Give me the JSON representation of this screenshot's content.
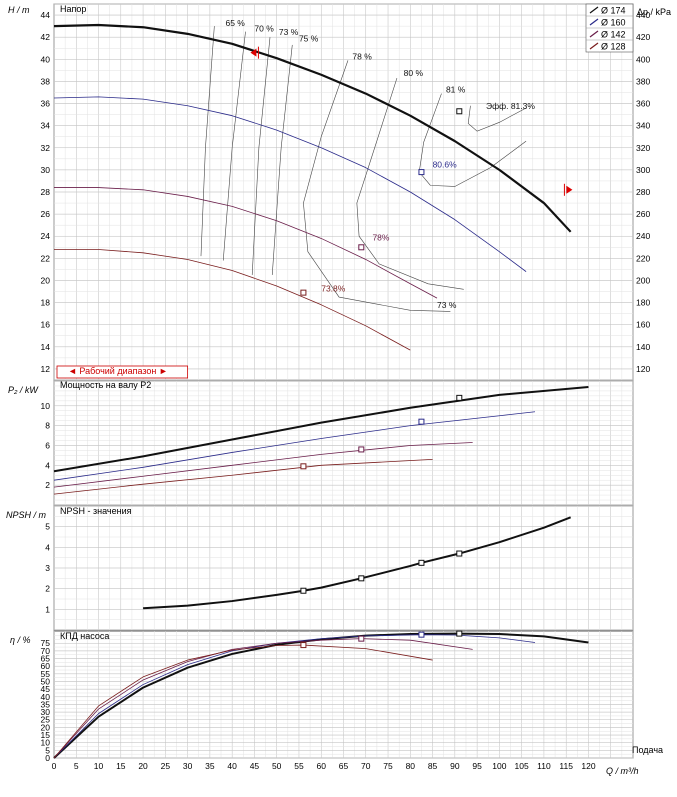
{
  "legend": [
    {
      "label": "Ø 174",
      "color": "#111111"
    },
    {
      "label": "Ø 160",
      "color": "#2b2b8a"
    },
    {
      "label": "Ø 142",
      "color": "#6a1e4a"
    },
    {
      "label": "Ø 128",
      "color": "#7a1e1e"
    }
  ],
  "x_axis": {
    "ticks": [
      0,
      5,
      10,
      15,
      20,
      25,
      30,
      35,
      40,
      45,
      50,
      55,
      60,
      65,
      70,
      75,
      80,
      85,
      90,
      95,
      100,
      105,
      110,
      115,
      120
    ],
    "min": 0,
    "max": 130,
    "label": "Q / m³/h",
    "sublabel": "Подача"
  },
  "panels": {
    "head": {
      "title": "Напор",
      "y_label": "H / m",
      "y_right_label": "Δp / kPa",
      "y_ticks": [
        12,
        14,
        16,
        18,
        20,
        22,
        24,
        26,
        28,
        30,
        32,
        34,
        36,
        38,
        40,
        42,
        44
      ],
      "y_right_ticks": [
        120,
        140,
        160,
        180,
        200,
        220,
        240,
        260,
        280,
        300,
        320,
        340,
        360,
        380,
        400,
        420,
        440
      ],
      "ylim": [
        11,
        45
      ],
      "range_label": "◄ Рабочий диапазон ►"
    },
    "power": {
      "title": "Мощность на валу P2",
      "y_label": "P₂ / kW",
      "y_ticks": [
        2,
        4,
        6,
        8,
        10
      ],
      "ylim": [
        0,
        12.5
      ]
    },
    "npsh": {
      "title": "NPSH - значения",
      "y_label": "NPSH / m",
      "y_ticks": [
        1,
        2,
        3,
        4,
        5
      ],
      "ylim": [
        0,
        6
      ]
    },
    "eff": {
      "title": "КПД насоса",
      "y_label": "η / %",
      "y_ticks": [
        0,
        5,
        10,
        15,
        20,
        25,
        30,
        35,
        40,
        45,
        50,
        55,
        60,
        65,
        70,
        75
      ],
      "ylim": [
        0,
        83
      ]
    }
  },
  "efficiency_labels": [
    {
      "text": "65 %",
      "x": 38.5,
      "y": 43.0
    },
    {
      "text": "70 %",
      "x": 45,
      "y": 42.5
    },
    {
      "text": "73 %",
      "x": 50.5,
      "y": 42.2
    },
    {
      "text": "75 %",
      "x": 55,
      "y": 41.6
    },
    {
      "text": "78 %",
      "x": 67,
      "y": 40.0
    },
    {
      "text": "80 %",
      "x": 78.5,
      "y": 38.5
    },
    {
      "text": "81 %",
      "x": 88,
      "y": 37.0
    },
    {
      "text": "Эфф.  81.3%",
      "x": 97,
      "y": 35.5
    },
    {
      "text": "80.6%",
      "x": 85,
      "y": 30.2
    },
    {
      "text": "78%",
      "x": 71.5,
      "y": 23.6
    },
    {
      "text": "73.8%",
      "x": 60,
      "y": 19.0
    },
    {
      "text": "73 %",
      "x": 86,
      "y": 17.5
    }
  ],
  "chart_data": [
    {
      "type": "line",
      "title": "Напор",
      "ylabel": "H / m",
      "y2label": "Δp / kPa",
      "xlabel": "Q / m³/h",
      "xlim": [
        0,
        130
      ],
      "ylim": [
        11,
        45
      ],
      "grid": true,
      "legend": "top-right",
      "series": [
        {
          "name": "Ø 174",
          "color": "#111111",
          "width": 2.2,
          "x": [
            0,
            10,
            20,
            30,
            40,
            50,
            60,
            70,
            80,
            90,
            100,
            110,
            116
          ],
          "y": [
            43.0,
            43.1,
            42.9,
            42.3,
            41.4,
            40.1,
            38.6,
            36.9,
            34.9,
            32.6,
            30.0,
            27.0,
            24.4
          ]
        },
        {
          "name": "Ø 160",
          "color": "#2b2b8a",
          "width": 0.8,
          "x": [
            0,
            10,
            20,
            30,
            40,
            50,
            60,
            70,
            80,
            90,
            100,
            106
          ],
          "y": [
            36.5,
            36.6,
            36.4,
            35.8,
            34.9,
            33.6,
            32.0,
            30.2,
            28.0,
            25.5,
            22.6,
            20.8
          ]
        },
        {
          "name": "Ø 142",
          "color": "#6a1e4a",
          "width": 0.8,
          "x": [
            0,
            10,
            20,
            30,
            40,
            50,
            60,
            70,
            80,
            86
          ],
          "y": [
            28.4,
            28.4,
            28.2,
            27.6,
            26.7,
            25.4,
            23.8,
            21.9,
            19.7,
            18.4
          ]
        },
        {
          "name": "Ø 128",
          "color": "#7a1e1e",
          "width": 0.8,
          "x": [
            0,
            10,
            20,
            30,
            40,
            50,
            60,
            70,
            80
          ],
          "y": [
            22.8,
            22.8,
            22.5,
            21.9,
            20.9,
            19.5,
            17.8,
            15.9,
            13.7
          ]
        }
      ],
      "iso_lines": [
        {
          "x": [
            36,
            34,
            33
          ],
          "y": [
            43,
            32,
            22.2
          ]
        },
        {
          "x": [
            43,
            40,
            38
          ],
          "y": [
            42.5,
            32,
            21.8
          ]
        },
        {
          "x": [
            48.5,
            46,
            44.5
          ],
          "y": [
            42.0,
            32,
            20.5
          ]
        },
        {
          "x": [
            53.5,
            51,
            49
          ],
          "y": [
            41.3,
            32,
            20.5
          ]
        },
        {
          "x": [
            66,
            60,
            56,
            57,
            64,
            80,
            89
          ],
          "y": [
            39.9,
            33,
            27,
            22.6,
            18.5,
            17.3,
            17.2
          ]
        },
        {
          "x": [
            77,
            72,
            68,
            68.5,
            73,
            84,
            92
          ],
          "y": [
            38.3,
            32,
            27,
            24,
            21.5,
            19.7,
            19.2
          ]
        },
        {
          "x": [
            87,
            83,
            82,
            84.5,
            90,
            98,
            106
          ],
          "y": [
            36.9,
            32.5,
            29.8,
            28.6,
            28.5,
            30.2,
            32.6
          ]
        },
        {
          "x": [
            93.5,
            93,
            95,
            100,
            106
          ],
          "y": [
            35.8,
            34.2,
            33.5,
            34.3,
            35.6
          ]
        }
      ],
      "duty_points": [
        {
          "x": 91,
          "y": 35.3
        },
        {
          "x": 82.5,
          "y": 29.8
        },
        {
          "x": 69,
          "y": 23.0
        },
        {
          "x": 56,
          "y": 18.9
        }
      ],
      "operating_range": [
        0,
        30
      ]
    },
    {
      "type": "line",
      "title": "Мощность на валу P2",
      "ylabel": "P₂ / kW",
      "xlim": [
        0,
        130
      ],
      "ylim": [
        0,
        12.5
      ],
      "grid": true,
      "series": [
        {
          "name": "Ø 174",
          "x": [
            0,
            20,
            40,
            60,
            80,
            100,
            120
          ],
          "y": [
            3.4,
            4.9,
            6.6,
            8.3,
            9.8,
            11.1,
            11.9
          ]
        },
        {
          "name": "Ø 160",
          "x": [
            0,
            20,
            40,
            60,
            80,
            100,
            108
          ],
          "y": [
            2.5,
            3.8,
            5.3,
            6.7,
            8.0,
            9.0,
            9.4
          ]
        },
        {
          "name": "Ø 142",
          "x": [
            0,
            20,
            40,
            60,
            80,
            94
          ],
          "y": [
            1.8,
            2.9,
            4.0,
            5.1,
            6.0,
            6.3
          ]
        },
        {
          "name": "Ø 128",
          "x": [
            0,
            20,
            40,
            60,
            85
          ],
          "y": [
            1.1,
            2.1,
            3.0,
            4.0,
            4.6
          ]
        }
      ],
      "duty_points": [
        {
          "x": 91,
          "y": 10.8
        },
        {
          "x": 82.5,
          "y": 8.4
        },
        {
          "x": 69,
          "y": 5.6
        },
        {
          "x": 56,
          "y": 3.9
        }
      ]
    },
    {
      "type": "line",
      "title": "NPSH - значения",
      "ylabel": "NPSH / m",
      "xlim": [
        0,
        130
      ],
      "ylim": [
        0,
        6
      ],
      "grid": true,
      "series": [
        {
          "name": "NPSH",
          "x": [
            20,
            30,
            40,
            50,
            56,
            60,
            69,
            80,
            82.5,
            91,
            100,
            110,
            116
          ],
          "y": [
            1.05,
            1.18,
            1.4,
            1.7,
            1.9,
            2.05,
            2.5,
            3.1,
            3.25,
            3.7,
            4.25,
            4.95,
            5.45
          ]
        }
      ],
      "duty_points": [
        {
          "x": 91,
          "y": 3.7
        },
        {
          "x": 82.5,
          "y": 3.25
        },
        {
          "x": 69,
          "y": 2.5
        },
        {
          "x": 56,
          "y": 1.9
        }
      ]
    },
    {
      "type": "line",
      "title": "КПД насоса",
      "ylabel": "η / %",
      "xlim": [
        0,
        130
      ],
      "ylim": [
        0,
        83
      ],
      "grid": true,
      "series": [
        {
          "name": "Ø 174",
          "x": [
            0,
            10,
            20,
            30,
            40,
            50,
            60,
            70,
            80,
            90,
            100,
            110,
            120
          ],
          "y": [
            0,
            27,
            46,
            59,
            68,
            74,
            77.5,
            80,
            81,
            81.3,
            81,
            79.5,
            75.5
          ]
        },
        {
          "name": "Ø 160",
          "x": [
            0,
            10,
            20,
            30,
            40,
            50,
            60,
            70,
            82.5,
            90,
            100,
            108
          ],
          "y": [
            0,
            29,
            48,
            61,
            70,
            75,
            78,
            79.8,
            80.6,
            80.4,
            78.5,
            75.5
          ]
        },
        {
          "name": "Ø 142",
          "x": [
            0,
            10,
            20,
            30,
            40,
            50,
            60,
            69,
            80,
            94
          ],
          "y": [
            0,
            32,
            51,
            63,
            71,
            75,
            77,
            78,
            77,
            71
          ]
        },
        {
          "name": "Ø 128",
          "x": [
            0,
            10,
            20,
            30,
            40,
            50,
            56,
            70,
            85
          ],
          "y": [
            0,
            34,
            53,
            64,
            70.5,
            73.5,
            73.8,
            71.5,
            64
          ]
        }
      ],
      "duty_points": [
        {
          "x": 91,
          "y": 81.3
        },
        {
          "x": 82.5,
          "y": 80.6
        },
        {
          "x": 69,
          "y": 78
        },
        {
          "x": 56,
          "y": 73.8
        }
      ]
    }
  ]
}
